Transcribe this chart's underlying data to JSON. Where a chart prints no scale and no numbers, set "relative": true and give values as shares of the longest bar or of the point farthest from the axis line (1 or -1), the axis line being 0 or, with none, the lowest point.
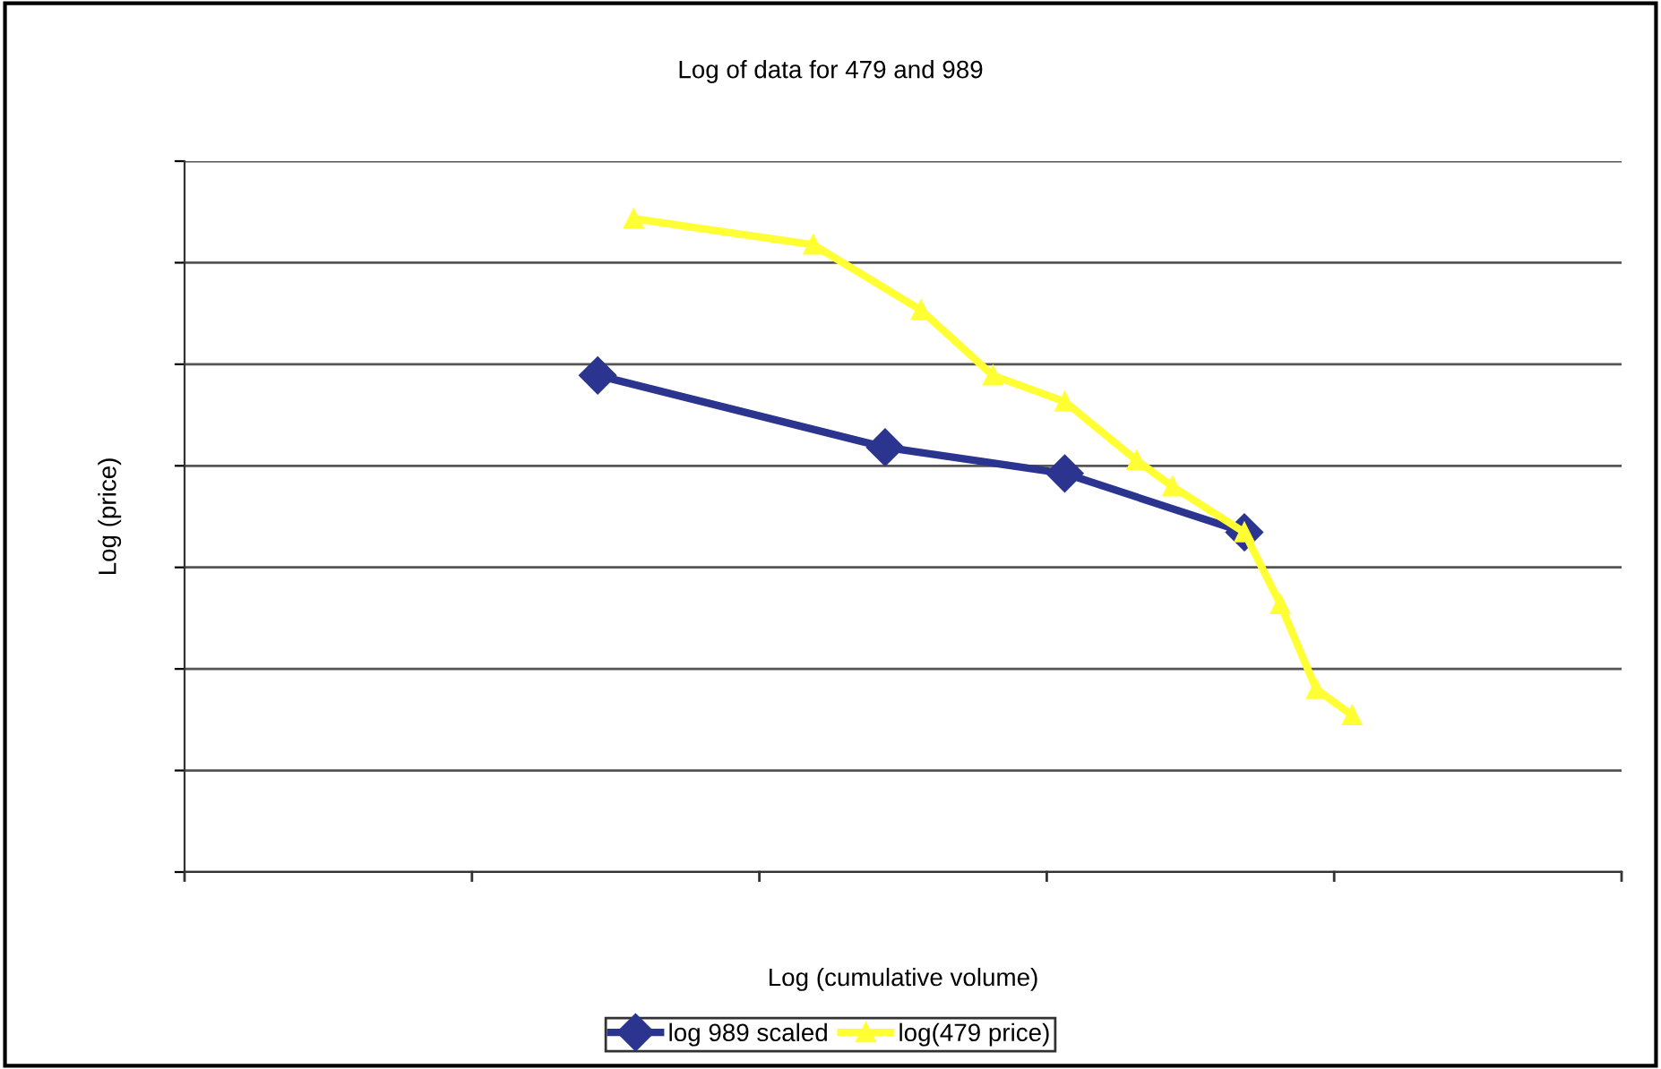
{
  "chart_data": {
    "type": "line",
    "title": "Log of data for 479 and 989",
    "xlabel": "Log (cumulative volume)",
    "ylabel": "Log (price)",
    "relative": true,
    "grid": "y",
    "legend": "bottom",
    "categories": [
      null,
      null,
      null,
      null,
      null,
      null,
      null,
      null,
      null,
      null,
      null,
      null,
      null,
      null,
      null,
      null,
      null,
      null,
      null,
      null,
      null,
      null,
      null,
      null,
      null,
      null,
      null,
      null,
      null,
      null,
      null,
      null,
      null,
      null,
      null,
      null,
      null,
      null,
      null,
      null
    ],
    "series": [
      {
        "name": "log 989 scaled",
        "color": "#2b3590",
        "marker": "diamond",
        "values": [
          null,
          null,
          null,
          null,
          null,
          null,
          null,
          null,
          null,
          null,
          null,
          0.76,
          null,
          null,
          null,
          null,
          null,
          null,
          null,
          0.65,
          null,
          null,
          null,
          null,
          0.61,
          null,
          null,
          null,
          null,
          0.52,
          null,
          null,
          null,
          null,
          null,
          null,
          null,
          null,
          null,
          null
        ]
      },
      {
        "name": "log(479 price)",
        "color": "#ffff33",
        "marker": "triangle",
        "values": [
          null,
          null,
          null,
          null,
          null,
          null,
          null,
          null,
          null,
          null,
          null,
          null,
          1.0,
          null,
          null,
          null,
          null,
          0.96,
          null,
          null,
          0.86,
          null,
          0.76,
          null,
          0.72,
          null,
          0.63,
          0.59,
          null,
          0.52,
          0.41,
          0.28,
          0.24,
          null,
          null,
          null,
          null,
          null,
          null,
          null
        ]
      }
    ]
  }
}
